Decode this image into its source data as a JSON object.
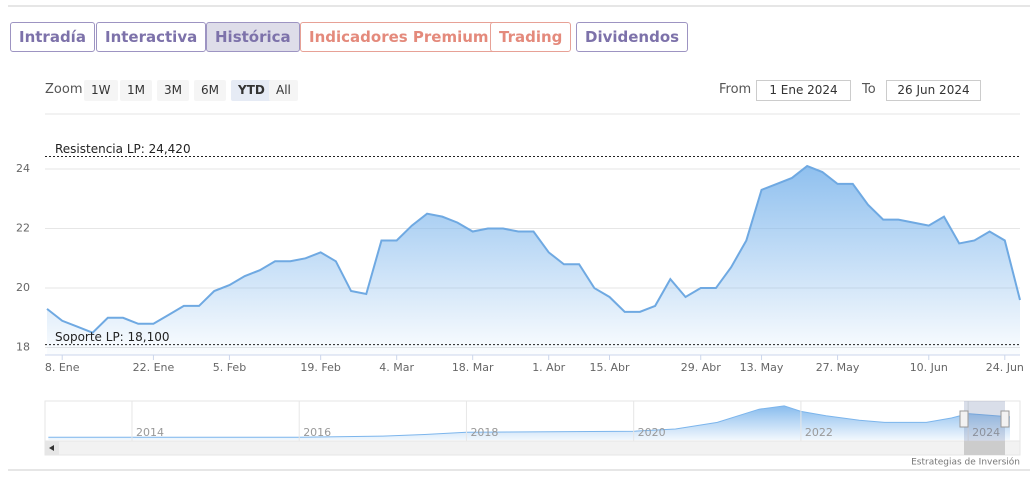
{
  "tabs": [
    "Intradía",
    "Interactiva",
    "Histórica",
    "Indicadores Premium",
    "Trading",
    "Dividendos"
  ],
  "active_tab": 2,
  "zoom": {
    "label": "Zoom",
    "buttons": [
      "1W",
      "1M",
      "3M",
      "6M",
      "YTD",
      "All"
    ],
    "active": 4
  },
  "range": {
    "from_label": "From",
    "from": "1 Ene 2024",
    "to_label": "To",
    "to": "26 Jun 2024"
  },
  "credit": "Estrategias de Inversión",
  "chart_data": {
    "type": "area",
    "color": "#6fa9e2",
    "categories": [
      null,
      "8. Ene",
      null,
      null,
      null,
      null,
      null,
      "22. Ene",
      null,
      null,
      null,
      null,
      "5. Feb",
      null,
      null,
      null,
      null,
      null,
      "19. Feb",
      null,
      null,
      null,
      null,
      "4. Mar",
      null,
      null,
      null,
      null,
      "18. Mar",
      null,
      null,
      null,
      null,
      "1. Abr",
      null,
      null,
      null,
      "15. Abr",
      null,
      null,
      null,
      null,
      null,
      "29. Abr",
      null,
      null,
      null,
      "13. May",
      null,
      null,
      null,
      null,
      "27. May",
      null,
      null,
      null,
      null,
      null,
      "10. Jun",
      null,
      null,
      null,
      null,
      "24. Jun",
      null
    ],
    "values": [
      19.3,
      18.9,
      18.7,
      18.5,
      19.0,
      19.0,
      18.8,
      18.8,
      19.1,
      19.4,
      19.4,
      19.9,
      20.1,
      20.4,
      20.6,
      20.9,
      20.9,
      21.0,
      21.2,
      20.9,
      19.9,
      19.8,
      21.6,
      21.6,
      22.1,
      22.5,
      22.4,
      22.2,
      21.9,
      22.0,
      22.0,
      21.9,
      21.9,
      21.2,
      20.8,
      20.8,
      20.0,
      19.7,
      19.2,
      19.2,
      19.4,
      20.3,
      19.7,
      20.0,
      20.0,
      20.7,
      21.6,
      23.3,
      23.5,
      23.7,
      24.1,
      23.9,
      23.5,
      23.5,
      22.8,
      22.3,
      22.3,
      22.2,
      22.1,
      22.4,
      21.5,
      21.6,
      21.9,
      21.6,
      19.6
    ],
    "ylim": [
      17.75,
      25.85
    ],
    "yticks": [
      18,
      20,
      22,
      24
    ],
    "grid": true,
    "plot_lines": [
      {
        "value": 24.42,
        "label": "Resistencia LP: 24,420"
      },
      {
        "value": 18.1,
        "label": "Soporte LP: 18,100"
      }
    ],
    "navigator": {
      "x": [
        2013.0,
        2014,
        2015,
        2016,
        2017,
        2017.5,
        2018,
        2019,
        2020,
        2020.5,
        2021,
        2021.5,
        2021.8,
        2022,
        2022.3,
        2022.7,
        2023,
        2023.5,
        2023.8,
        2024,
        2024.5
      ],
      "values": [
        2.5,
        2.5,
        2.5,
        2.5,
        3.5,
        5,
        7,
        7.5,
        8,
        10,
        16,
        28,
        31,
        26,
        22,
        18,
        16,
        16,
        20,
        24,
        21
      ],
      "xlim": [
        2012.96,
        2024.62
      ],
      "ylim": [
        0,
        40
      ],
      "xticks": [
        2014,
        2016,
        2018,
        2020,
        2022,
        2024
      ]
    }
  }
}
